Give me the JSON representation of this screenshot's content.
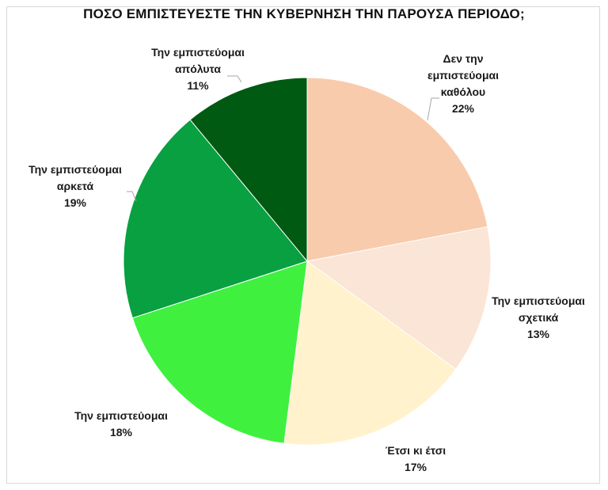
{
  "chart_data": {
    "type": "pie",
    "title": "ΠΟΣΟ ΕΜΠΙΣΤΕΥΕΣΤΕ ΤΗΝ ΚΥΒΕΡΝΗΣΗ ΤΗΝ ΠΑΡΟΥΣΑ ΠΕΡΙΟΔΟ;",
    "slices": [
      {
        "label_lines": [
          "Δεν την",
          "εμπιστεύομαι",
          "καθόλου"
        ],
        "value": 22,
        "value_label": "22%",
        "color": "#F8CBAD"
      },
      {
        "label_lines": [
          "Την εμπιστεύομαι",
          "σχετικά"
        ],
        "value": 13,
        "value_label": "13%",
        "color": "#FBE5D6"
      },
      {
        "label_lines": [
          "Έτσι κι έτσι"
        ],
        "value": 17,
        "value_label": "17%",
        "color": "#FFF2CC"
      },
      {
        "label_lines": [
          "Την εμπιστεύομαι"
        ],
        "value": 18,
        "value_label": "18%",
        "color": "#3FF03F"
      },
      {
        "label_lines": [
          "Την εμπιστεύομαι",
          "αρκετά"
        ],
        "value": 19,
        "value_label": "19%",
        "color": "#08A040"
      },
      {
        "label_lines": [
          "Την εμπιστεύομαι",
          "απόλυτα"
        ],
        "value": 11,
        "value_label": "11%",
        "color": "#005A12"
      }
    ],
    "start_angle": "12 o'clock",
    "direction": "clockwise",
    "legend": "none",
    "data_labels": "outside with leader lines"
  }
}
